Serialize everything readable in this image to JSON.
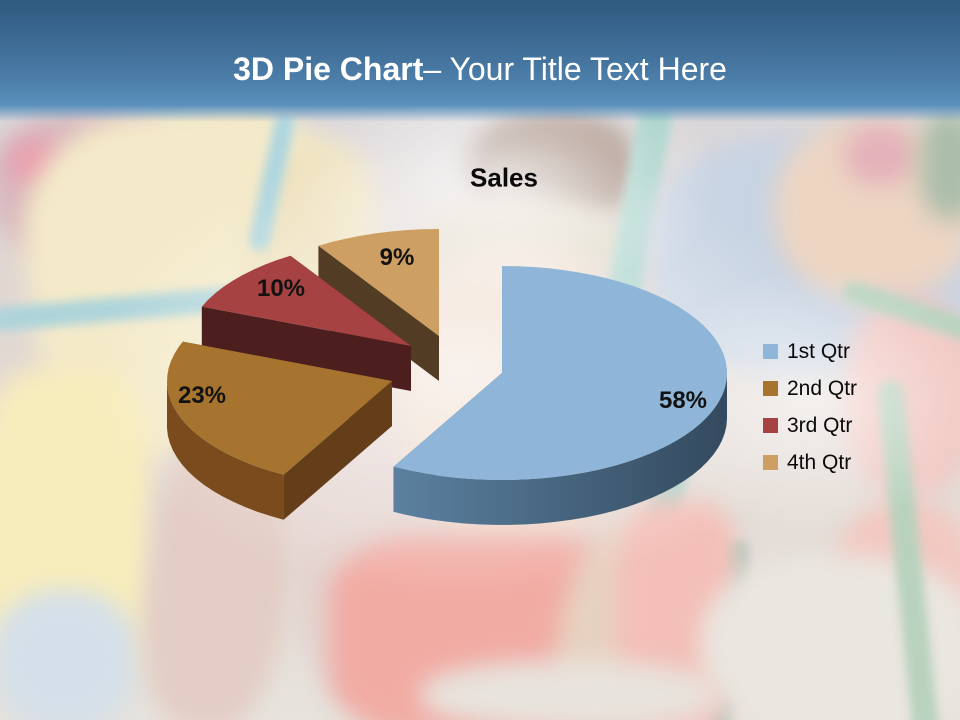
{
  "slide": {
    "title_bold": "3D Pie Chart",
    "title_rest": "– Your Title Text Here"
  },
  "chart_data": {
    "type": "pie",
    "style": "3d-exploded",
    "title": "Sales",
    "categories": [
      "1st Qtr",
      "2nd Qtr",
      "3rd Qtr",
      "4th Qtr"
    ],
    "values": [
      58,
      23,
      10,
      9
    ],
    "labels": [
      "58%",
      "23%",
      "10%",
      "9%"
    ],
    "colors": [
      "#8FB5D8",
      "#A6742F",
      "#A64242",
      "#CD9F63"
    ],
    "side_colors": [
      "#44607B",
      "#7A4C1D",
      "#5E2425",
      "#65492C"
    ],
    "legend_position": "right",
    "label_color": "#121212"
  },
  "theme": {
    "header_top": "#2F5A80",
    "header_bottom": "#5A90BC",
    "title_color": "#FFFFFF"
  }
}
